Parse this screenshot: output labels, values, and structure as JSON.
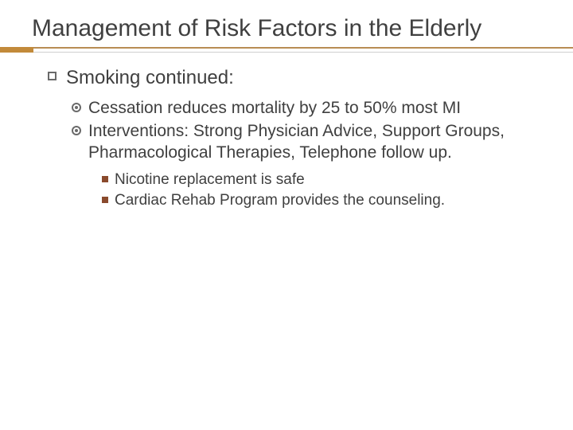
{
  "title": "Management of Risk Factors in the Elderly",
  "colors": {
    "title_rule": "#b88d54",
    "title_rule_light": "#cfcfcf",
    "accent_bar": "#c28a3a",
    "text": "#404040",
    "square_bullet_border": "#6a6a6a",
    "circle_bullet_border": "#6a6a6a",
    "filled_square_bullet": "#8a4a2d",
    "background": "#ffffff"
  },
  "typography": {
    "title_fontsize": 30,
    "lvl1_fontsize": 24,
    "lvl2_fontsize": 21,
    "lvl3_fontsize": 19,
    "font_family": "Arial"
  },
  "lvl1": {
    "text": "Smoking continued:"
  },
  "lvl2": [
    {
      "text": "Cessation reduces mortality by 25 to 50% most MI"
    },
    {
      "text": "Interventions: Strong Physician Advice, Support Groups, Pharmacological Therapies, Telephone follow up."
    }
  ],
  "lvl3": [
    {
      "text": "Nicotine replacement is safe"
    },
    {
      "text": "Cardiac Rehab Program provides the counseling."
    }
  ]
}
